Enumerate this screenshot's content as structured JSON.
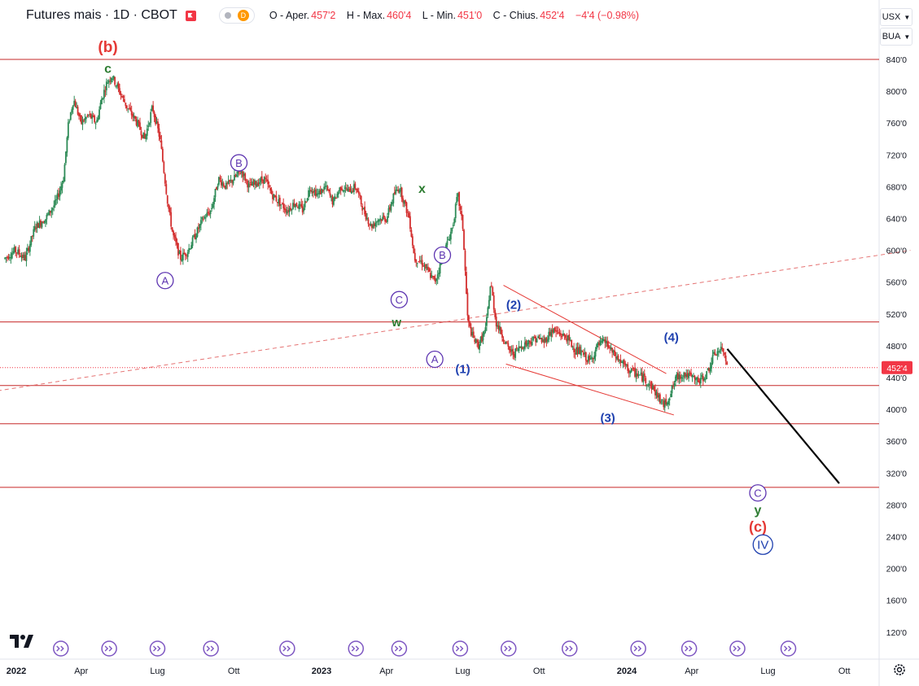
{
  "header": {
    "symbol": "Futures mais · 1D · CBOT",
    "badge_letter": "D",
    "o_label": "O - Aper.",
    "o_value": "457'2",
    "h_label": "H - Max.",
    "h_value": "460'4",
    "l_label": "L - Min.",
    "l_value": "451'0",
    "c_label": "C - Chius.",
    "c_value": "452'4",
    "change": "−4'4 (−0.98%)"
  },
  "unit_selectors": {
    "currency": "USX",
    "unit": "BUA"
  },
  "price_axis": {
    "ticks": [
      120,
      160,
      200,
      240,
      280,
      320,
      360,
      400,
      440,
      480,
      520,
      560,
      600,
      640,
      680,
      720,
      760,
      800,
      840
    ],
    "tick_labels": [
      "120'0",
      "160'0",
      "200'0",
      "240'0",
      "280'0",
      "320'0",
      "360'0",
      "400'0",
      "440'0",
      "480'0",
      "520'0",
      "560'0",
      "600'0",
      "640'0",
      "680'0",
      "720'0",
      "760'0",
      "800'0",
      "840'0"
    ],
    "current_price": 452.5,
    "current_label": "452'4",
    "current_color": "#f23645"
  },
  "time_axis": {
    "labels": [
      {
        "text": "2022",
        "bold": true,
        "m": 0
      },
      {
        "text": "Apr",
        "bold": false,
        "m": 3
      },
      {
        "text": "Lug",
        "bold": false,
        "m": 6
      },
      {
        "text": "Ott",
        "bold": false,
        "m": 9
      },
      {
        "text": "2023",
        "bold": true,
        "m": 12
      },
      {
        "text": "Apr",
        "bold": false,
        "m": 15
      },
      {
        "text": "Lug",
        "bold": false,
        "m": 18
      },
      {
        "text": "Ott",
        "bold": false,
        "m": 21
      },
      {
        "text": "2024",
        "bold": true,
        "m": 24
      },
      {
        "text": "Apr",
        "bold": false,
        "m": 27
      },
      {
        "text": "Lug",
        "bold": false,
        "m": 30
      },
      {
        "text": "Ott",
        "bold": false,
        "m": 33
      }
    ],
    "event_markers_m": [
      2.2,
      4.1,
      6.0,
      8.1,
      11.1,
      13.8,
      15.5,
      17.9,
      19.8,
      22.2,
      24.9,
      26.9,
      28.8,
      30.8
    ]
  },
  "chart_data": {
    "type": "candlestick",
    "title": "Futures mais · 1D · CBOT",
    "x_unit": "months since Jan 2022",
    "ylim": [
      100,
      870
    ],
    "price_path": [
      [
        0.0,
        590
      ],
      [
        0.4,
        600
      ],
      [
        0.8,
        590
      ],
      [
        1.2,
        630
      ],
      [
        1.6,
        640
      ],
      [
        2.0,
        660
      ],
      [
        2.3,
        690
      ],
      [
        2.5,
        760
      ],
      [
        2.7,
        790
      ],
      [
        3.0,
        760
      ],
      [
        3.3,
        770
      ],
      [
        3.6,
        760
      ],
      [
        3.8,
        790
      ],
      [
        4.0,
        810
      ],
      [
        4.2,
        820
      ],
      [
        4.5,
        800
      ],
      [
        4.8,
        780
      ],
      [
        5.2,
        760
      ],
      [
        5.5,
        740
      ],
      [
        5.8,
        780
      ],
      [
        6.1,
        740
      ],
      [
        6.4,
        660
      ],
      [
        6.6,
        620
      ],
      [
        6.9,
        590
      ],
      [
        7.2,
        600
      ],
      [
        7.5,
        620
      ],
      [
        7.8,
        640
      ],
      [
        8.1,
        650
      ],
      [
        8.4,
        690
      ],
      [
        8.7,
        680
      ],
      [
        9.0,
        690
      ],
      [
        9.3,
        700
      ],
      [
        9.6,
        680
      ],
      [
        9.9,
        685
      ],
      [
        10.2,
        690
      ],
      [
        10.5,
        670
      ],
      [
        10.8,
        660
      ],
      [
        11.1,
        650
      ],
      [
        11.4,
        660
      ],
      [
        11.7,
        650
      ],
      [
        12.0,
        680
      ],
      [
        12.3,
        670
      ],
      [
        12.6,
        680
      ],
      [
        12.9,
        660
      ],
      [
        13.2,
        680
      ],
      [
        13.5,
        675
      ],
      [
        13.8,
        680
      ],
      [
        14.1,
        650
      ],
      [
        14.4,
        630
      ],
      [
        14.7,
        640
      ],
      [
        15.0,
        640
      ],
      [
        15.3,
        670
      ],
      [
        15.5,
        680
      ],
      [
        15.7,
        660
      ],
      [
        15.9,
        640
      ],
      [
        16.1,
        590
      ],
      [
        16.4,
        585
      ],
      [
        16.7,
        570
      ],
      [
        16.9,
        560
      ],
      [
        17.1,
        580
      ],
      [
        17.3,
        600
      ],
      [
        17.6,
        630
      ],
      [
        17.8,
        670
      ],
      [
        18.0,
        630
      ],
      [
        18.2,
        510
      ],
      [
        18.4,
        490
      ],
      [
        18.6,
        480
      ],
      [
        18.9,
        500
      ],
      [
        19.1,
        560
      ],
      [
        19.3,
        510
      ],
      [
        19.6,
        490
      ],
      [
        19.8,
        475
      ],
      [
        20.0,
        470
      ],
      [
        20.3,
        480
      ],
      [
        20.6,
        485
      ],
      [
        20.9,
        490
      ],
      [
        21.2,
        485
      ],
      [
        21.5,
        500
      ],
      [
        21.8,
        495
      ],
      [
        22.1,
        490
      ],
      [
        22.4,
        475
      ],
      [
        22.7,
        470
      ],
      [
        23.0,
        460
      ],
      [
        23.3,
        480
      ],
      [
        23.6,
        485
      ],
      [
        23.9,
        470
      ],
      [
        24.2,
        460
      ],
      [
        24.5,
        450
      ],
      [
        24.8,
        445
      ],
      [
        25.1,
        440
      ],
      [
        25.4,
        430
      ],
      [
        25.7,
        415
      ],
      [
        25.9,
        405
      ],
      [
        26.1,
        415
      ],
      [
        26.4,
        440
      ],
      [
        26.7,
        445
      ],
      [
        27.0,
        440
      ],
      [
        27.3,
        435
      ],
      [
        27.6,
        445
      ],
      [
        27.9,
        470
      ],
      [
        28.2,
        475
      ],
      [
        28.4,
        460
      ]
    ],
    "horizontal_levels": [
      840,
      510,
      430,
      382,
      302
    ],
    "dashed_trendline": {
      "m1": -2.0,
      "p1": 415,
      "m2": 35.6,
      "p2": 600
    },
    "channel_lines": [
      {
        "m1": 19.6,
        "p1": 556,
        "m2": 26.0,
        "p2": 445
      },
      {
        "m1": 19.7,
        "p1": 457,
        "m2": 26.3,
        "p2": 393
      }
    ],
    "projection": {
      "m1": 28.4,
      "p1": 476,
      "m2": 32.8,
      "p2": 307
    }
  },
  "wave_labels": [
    {
      "text": "(b)",
      "m": 4.05,
      "p": 856,
      "color": "#e53935",
      "circle": false,
      "size": 19
    },
    {
      "text": "c",
      "m": 4.05,
      "p": 829,
      "color": "#2e7d32",
      "circle": false,
      "size": 16
    },
    {
      "text": "B",
      "m": 9.2,
      "p": 710,
      "color": "#5e35b1",
      "circle": true,
      "size": 13
    },
    {
      "text": "A",
      "m": 6.3,
      "p": 562,
      "color": "#5e35b1",
      "circle": true,
      "size": 13
    },
    {
      "text": "x",
      "m": 16.4,
      "p": 678,
      "color": "#2e7d32",
      "circle": false,
      "size": 16
    },
    {
      "text": "B",
      "m": 17.2,
      "p": 594,
      "color": "#5e35b1",
      "circle": true,
      "size": 13
    },
    {
      "text": "C",
      "m": 15.5,
      "p": 538,
      "color": "#5e35b1",
      "circle": true,
      "size": 13
    },
    {
      "text": "w",
      "m": 15.4,
      "p": 510,
      "color": "#2e7d32",
      "circle": false,
      "size": 15
    },
    {
      "text": "A",
      "m": 16.9,
      "p": 463,
      "color": "#5e35b1",
      "circle": true,
      "size": 13
    },
    {
      "text": "(1)",
      "m": 18.0,
      "p": 451,
      "color": "#1e40af",
      "circle": false,
      "size": 15
    },
    {
      "text": "(2)",
      "m": 20.0,
      "p": 532,
      "color": "#1e40af",
      "circle": false,
      "size": 15
    },
    {
      "text": "(3)",
      "m": 23.7,
      "p": 390,
      "color": "#1e40af",
      "circle": false,
      "size": 15
    },
    {
      "text": "(4)",
      "m": 26.2,
      "p": 491,
      "color": "#1e40af",
      "circle": false,
      "size": 15
    },
    {
      "text": "C",
      "m": 29.6,
      "p": 295,
      "color": "#5e35b1",
      "circle": true,
      "size": 13
    },
    {
      "text": "y",
      "m": 29.6,
      "p": 274,
      "color": "#2e7d32",
      "circle": false,
      "size": 16
    },
    {
      "text": "(c)",
      "m": 29.6,
      "p": 253,
      "color": "#e53935",
      "circle": false,
      "size": 18
    },
    {
      "text": "IV",
      "m": 29.8,
      "p": 230,
      "color": "#1e40af",
      "circle": true,
      "size": 15
    }
  ]
}
